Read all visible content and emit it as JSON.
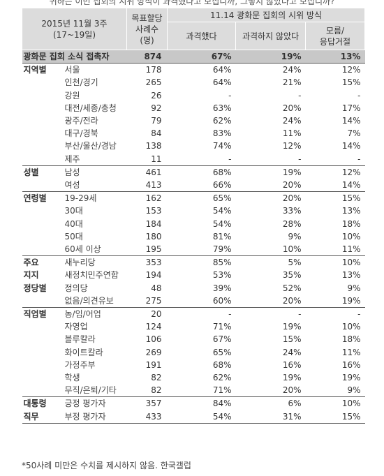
{
  "question": "귀하는 이번 집회의 시위 방식이 과격했다고 보십니까, 그렇지 않았다고 보십니까?",
  "header": {
    "period_line1": "2015년 11월 3주",
    "period_line2": "(17~19일)",
    "sample_line1": "목표할당",
    "sample_line2": "사례수",
    "sample_line3": "(명)",
    "group_title": "11.14 광화문 집회의 시위 방식",
    "col1": "과격했다",
    "col2": "과격하지 않았다",
    "col3_line1": "모름/",
    "col3_line2": "응답거절"
  },
  "rows": [
    {
      "cat": "광화문 집회 소식 접촉자",
      "sub": "",
      "n": "874",
      "a": "67%",
      "b": "19%",
      "c": "13%",
      "total": true
    },
    {
      "cat": "지역별",
      "sub": "서울",
      "n": "178",
      "a": "64%",
      "b": "24%",
      "c": "12%",
      "start": true
    },
    {
      "cat": "",
      "sub": "인천/경기",
      "n": "265",
      "a": "64%",
      "b": "21%",
      "c": "15%"
    },
    {
      "cat": "",
      "sub": "강원",
      "n": "26",
      "a": "-",
      "b": "-",
      "c": "-"
    },
    {
      "cat": "",
      "sub": "대전/세종/충청",
      "n": "92",
      "a": "63%",
      "b": "20%",
      "c": "17%"
    },
    {
      "cat": "",
      "sub": "광주/전라",
      "n": "79",
      "a": "62%",
      "b": "24%",
      "c": "14%"
    },
    {
      "cat": "",
      "sub": "대구/경북",
      "n": "84",
      "a": "83%",
      "b": "11%",
      "c": "7%"
    },
    {
      "cat": "",
      "sub": "부산/울산/경남",
      "n": "138",
      "a": "74%",
      "b": "12%",
      "c": "14%"
    },
    {
      "cat": "",
      "sub": "제주",
      "n": "11",
      "a": "-",
      "b": "-",
      "c": "-"
    },
    {
      "cat": "성별",
      "sub": "남성",
      "n": "461",
      "a": "68%",
      "b": "19%",
      "c": "12%",
      "start": true
    },
    {
      "cat": "",
      "sub": "여성",
      "n": "413",
      "a": "66%",
      "b": "20%",
      "c": "14%"
    },
    {
      "cat": "연령별",
      "sub": "19-29세",
      "n": "162",
      "a": "65%",
      "b": "20%",
      "c": "15%",
      "start": true
    },
    {
      "cat": "",
      "sub": "30대",
      "n": "153",
      "a": "54%",
      "b": "33%",
      "c": "13%"
    },
    {
      "cat": "",
      "sub": "40대",
      "n": "184",
      "a": "54%",
      "b": "28%",
      "c": "18%"
    },
    {
      "cat": "",
      "sub": "50대",
      "n": "180",
      "a": "81%",
      "b": "9%",
      "c": "10%"
    },
    {
      "cat": "",
      "sub": "60세 이상",
      "n": "195",
      "a": "79%",
      "b": "10%",
      "c": "11%"
    },
    {
      "cat": "주요",
      "sub": "새누리당",
      "n": "353",
      "a": "85%",
      "b": "5%",
      "c": "10%",
      "start": true
    },
    {
      "cat": "지지",
      "sub": "새정치민주연합",
      "n": "194",
      "a": "53%",
      "b": "35%",
      "c": "13%"
    },
    {
      "cat": "정당별",
      "sub": "정의당",
      "n": "48",
      "a": "39%",
      "b": "52%",
      "c": "9%"
    },
    {
      "cat": "",
      "sub": "없음/의견유보",
      "n": "275",
      "a": "60%",
      "b": "20%",
      "c": "19%"
    },
    {
      "cat": "직업별",
      "sub": "농/임/어업",
      "n": "20",
      "a": "-",
      "b": "-",
      "c": "-",
      "start": true
    },
    {
      "cat": "",
      "sub": "자영업",
      "n": "124",
      "a": "71%",
      "b": "19%",
      "c": "10%"
    },
    {
      "cat": "",
      "sub": "블루칼라",
      "n": "106",
      "a": "67%",
      "b": "15%",
      "c": "18%"
    },
    {
      "cat": "",
      "sub": "화이트칼라",
      "n": "269",
      "a": "65%",
      "b": "24%",
      "c": "11%"
    },
    {
      "cat": "",
      "sub": "가정주부",
      "n": "191",
      "a": "68%",
      "b": "16%",
      "c": "16%"
    },
    {
      "cat": "",
      "sub": "학생",
      "n": "82",
      "a": "62%",
      "b": "19%",
      "c": "19%"
    },
    {
      "cat": "",
      "sub": "무직/은퇴/기타",
      "n": "82",
      "a": "71%",
      "b": "20%",
      "c": "9%"
    },
    {
      "cat": "대통령",
      "sub": "긍정 평가자",
      "n": "357",
      "a": "84%",
      "b": "6%",
      "c": "10%",
      "start": true
    },
    {
      "cat": "직무",
      "sub": "부정 평가자",
      "n": "433",
      "a": "54%",
      "b": "31%",
      "c": "15%",
      "last": true
    }
  ],
  "footnote": "*50사례 미만은 수치를 제시하지 않음. 한국갤럽"
}
